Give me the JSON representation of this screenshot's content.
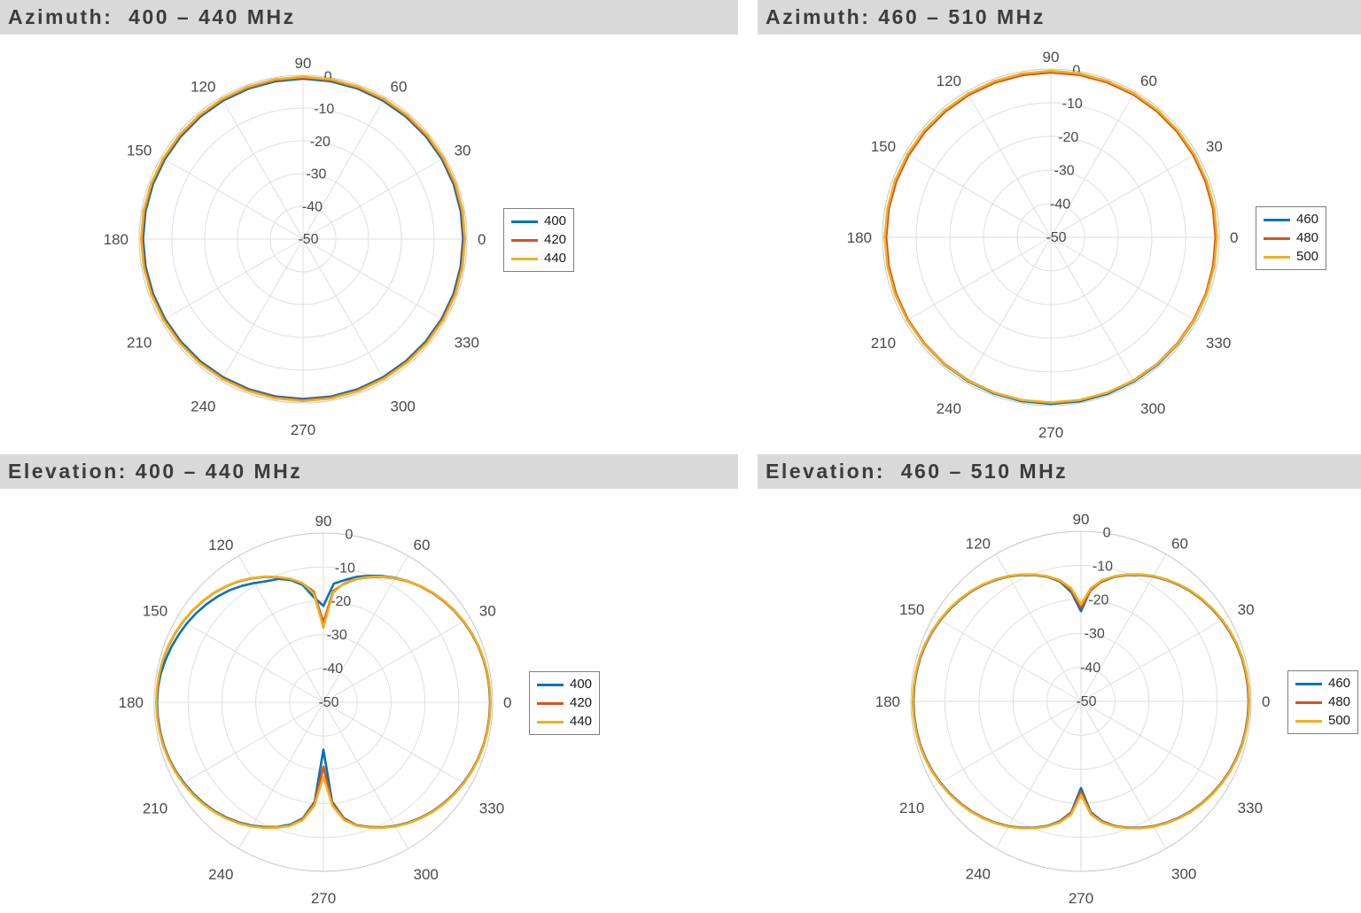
{
  "colors": {
    "title_bg": "#d9d9d9",
    "title_text": "#3c3c3c",
    "grid": "#dedede",
    "outer_ring": "#c6c6c6",
    "tick_text": "#4a4a4a",
    "legend_border": "#7f7f7f",
    "series_blue": "#0072BD",
    "series_orange": "#D95319",
    "series_yellow": "#EDB120"
  },
  "chart_data": [
    {
      "type": "line",
      "subtype": "polar",
      "title": "Azimuth:  400 – 440 MHz",
      "angle_unit": "deg",
      "value_unit": "dB",
      "angle_ticks": [
        0,
        30,
        60,
        90,
        120,
        150,
        180,
        210,
        240,
        270,
        300,
        330
      ],
      "r_ticks": [
        0,
        -10,
        -20,
        -30,
        -40,
        -50
      ],
      "r_range": [
        -50,
        0
      ],
      "grid": true,
      "legend_position": "right-middle",
      "angle_start_deg": 0,
      "angle_step_deg": 10,
      "series": [
        {
          "name": "400",
          "color": "#0072BD",
          "values_db": [
            -1.2,
            -1.15,
            -1.1,
            -1.1,
            -1.15,
            -1.2,
            -1.2,
            -1.15,
            -1.1,
            -1.05,
            -1.1,
            -1.15,
            -1.2,
            -1.25,
            -1.3,
            -1.3,
            -1.25,
            -1.2,
            -1.2,
            -1.25,
            -1.3,
            -1.35,
            -1.35,
            -1.3,
            -1.3,
            -1.3,
            -1.25,
            -1.2,
            -1.2,
            -1.25,
            -1.3,
            -1.3,
            -1.25,
            -1.2,
            -1.15,
            -1.2,
            -1.2
          ]
        },
        {
          "name": "420",
          "color": "#D95319",
          "values_db": [
            -0.85,
            -0.8,
            -0.75,
            -0.75,
            -0.8,
            -0.85,
            -0.85,
            -0.8,
            -0.75,
            -0.7,
            -0.75,
            -0.8,
            -0.85,
            -0.9,
            -0.95,
            -0.95,
            -0.9,
            -0.85,
            -0.85,
            -0.9,
            -0.95,
            -1.0,
            -1.0,
            -0.95,
            -0.95,
            -0.95,
            -0.9,
            -0.85,
            -0.85,
            -0.9,
            -0.95,
            -0.95,
            -0.9,
            -0.85,
            -0.8,
            -0.85,
            -0.85
          ]
        },
        {
          "name": "440",
          "color": "#EDB120",
          "values_db": [
            -0.6,
            -0.55,
            -0.5,
            -0.5,
            -0.55,
            -0.6,
            -0.6,
            -0.55,
            -0.5,
            -0.45,
            -0.5,
            -0.55,
            -0.6,
            -0.65,
            -0.7,
            -0.7,
            -0.65,
            -0.6,
            -0.6,
            -0.65,
            -0.7,
            -0.75,
            -0.75,
            -0.7,
            -0.7,
            -0.7,
            -0.65,
            -0.6,
            -0.6,
            -0.65,
            -0.7,
            -0.7,
            -0.65,
            -0.6,
            -0.55,
            -0.6,
            -0.6
          ]
        }
      ]
    },
    {
      "type": "line",
      "subtype": "polar",
      "title": "Azimuth: 460 – 510 MHz",
      "angle_unit": "deg",
      "value_unit": "dB",
      "angle_ticks": [
        0,
        30,
        60,
        90,
        120,
        150,
        180,
        210,
        240,
        270,
        300,
        330
      ],
      "r_ticks": [
        0,
        -10,
        -20,
        -30,
        -40,
        -50
      ],
      "r_range": [
        -50,
        0
      ],
      "grid": true,
      "legend_position": "right-middle",
      "angle_start_deg": 0,
      "angle_step_deg": 10,
      "series": [
        {
          "name": "460",
          "color": "#0072BD",
          "values_db": [
            -0.9,
            -0.95,
            -1.0,
            -1.0,
            -0.95,
            -0.9,
            -0.85,
            -0.8,
            -0.8,
            -0.8,
            -0.85,
            -0.9,
            -0.95,
            -1.0,
            -1.0,
            -1.0,
            -0.95,
            -0.9,
            -0.9,
            -0.9,
            -0.85,
            -0.8,
            -0.75,
            -0.7,
            -0.65,
            -0.6,
            -0.55,
            -0.5,
            -0.5,
            -0.55,
            -0.6,
            -0.65,
            -0.7,
            -0.75,
            -0.8,
            -0.85,
            -0.9
          ]
        },
        {
          "name": "480",
          "color": "#D95319",
          "values_db": [
            -1.1,
            -1.1,
            -1.15,
            -1.15,
            -1.1,
            -1.05,
            -1.0,
            -1.0,
            -1.0,
            -1.0,
            -1.05,
            -1.1,
            -1.15,
            -1.2,
            -1.2,
            -1.2,
            -1.15,
            -1.1,
            -1.1,
            -1.1,
            -1.05,
            -1.0,
            -0.95,
            -0.9,
            -0.9,
            -0.85,
            -0.85,
            -0.8,
            -0.8,
            -0.85,
            -0.9,
            -0.9,
            -0.95,
            -1.0,
            -1.0,
            -1.05,
            -1.1
          ]
        },
        {
          "name": "500",
          "color": "#EDB120",
          "values_db": [
            -0.7,
            -0.7,
            -0.75,
            -0.75,
            -0.7,
            -0.65,
            -0.6,
            -0.6,
            -0.55,
            -0.55,
            -0.6,
            -0.65,
            -0.7,
            -0.75,
            -0.75,
            -0.75,
            -0.7,
            -0.7,
            -0.65,
            -0.7,
            -0.7,
            -0.75,
            -0.75,
            -0.8,
            -0.8,
            -0.85,
            -0.85,
            -0.9,
            -0.9,
            -0.9,
            -0.85,
            -0.85,
            -0.8,
            -0.8,
            -0.75,
            -0.7,
            -0.7
          ]
        }
      ]
    },
    {
      "type": "line",
      "subtype": "polar",
      "title": "Elevation: 400 – 440 MHz",
      "angle_unit": "deg",
      "value_unit": "dB",
      "angle_ticks": [
        0,
        30,
        60,
        90,
        120,
        150,
        180,
        210,
        240,
        270,
        300,
        330
      ],
      "r_ticks": [
        0,
        -10,
        -20,
        -30,
        -40,
        -50
      ],
      "r_range": [
        -50,
        0
      ],
      "grid": true,
      "legend_position": "right-middle",
      "angle_start_deg": 0,
      "angle_step_deg": 5,
      "series": [
        {
          "name": "400",
          "color": "#0072BD",
          "values_db": [
            -0.75,
            -0.8,
            -0.9,
            -1.05,
            -1.35,
            -1.75,
            -2.25,
            -2.85,
            -3.55,
            -4.35,
            -5.3,
            -6.3,
            -7.5,
            -8.8,
            -10.2,
            -11.6,
            -13.3,
            -14.8,
            -21.5,
            -19.0,
            -14.8,
            -12.6,
            -11.2,
            -10.5,
            -9.3,
            -8.0,
            -6.8,
            -5.8,
            -4.9,
            -4.1,
            -3.4,
            -2.8,
            -2.2,
            -1.7,
            -1.2,
            -0.95,
            -0.85,
            -0.9,
            -1.0,
            -1.15,
            -1.45,
            -1.85,
            -2.4,
            -3.0,
            -3.7,
            -4.5,
            -5.5,
            -6.6,
            -7.9,
            -9.3,
            -10.8,
            -12.6,
            -15.2,
            -20.5,
            -36.0,
            -20.5,
            -15.2,
            -12.4,
            -10.8,
            -9.2,
            -7.8,
            -6.5,
            -5.4,
            -4.4,
            -3.6,
            -2.9,
            -2.3,
            -1.75,
            -1.35,
            -1.05,
            -0.9,
            -0.8,
            -0.75
          ]
        },
        {
          "name": "420",
          "color": "#D95319",
          "values_db": [
            -0.7,
            -0.75,
            -0.85,
            -1.0,
            -1.3,
            -1.7,
            -2.2,
            -2.8,
            -3.5,
            -4.3,
            -5.3,
            -6.4,
            -7.7,
            -9.1,
            -10.7,
            -12.3,
            -14.4,
            -17.0,
            -26.5,
            -17.2,
            -14.3,
            -12.3,
            -10.7,
            -9.1,
            -7.7,
            -6.4,
            -5.3,
            -4.3,
            -3.5,
            -2.8,
            -2.2,
            -1.7,
            -1.3,
            -1.0,
            -0.85,
            -0.75,
            -0.7,
            -0.75,
            -0.85,
            -1.0,
            -1.3,
            -1.7,
            -2.2,
            -2.8,
            -3.5,
            -4.3,
            -5.3,
            -6.4,
            -7.7,
            -9.1,
            -10.7,
            -12.3,
            -15.0,
            -20.0,
            -31.0,
            -20.0,
            -15.0,
            -12.3,
            -10.7,
            -9.1,
            -7.7,
            -6.4,
            -5.3,
            -4.3,
            -3.5,
            -2.8,
            -2.2,
            -1.7,
            -1.3,
            -1.0,
            -0.85,
            -0.75,
            -0.7
          ]
        },
        {
          "name": "440",
          "color": "#EDB120",
          "values_db": [
            -0.6,
            -0.65,
            -0.75,
            -0.9,
            -1.2,
            -1.6,
            -2.1,
            -2.7,
            -3.4,
            -4.2,
            -5.2,
            -6.3,
            -7.6,
            -9.0,
            -10.6,
            -12.2,
            -14.2,
            -17.5,
            -28.0,
            -17.8,
            -14.2,
            -12.2,
            -10.6,
            -9.0,
            -7.6,
            -6.3,
            -5.2,
            -4.2,
            -3.4,
            -2.7,
            -2.1,
            -1.6,
            -1.2,
            -0.9,
            -0.75,
            -0.65,
            -0.6,
            -0.65,
            -0.75,
            -0.9,
            -1.2,
            -1.6,
            -2.1,
            -2.7,
            -3.4,
            -4.2,
            -5.2,
            -6.3,
            -7.6,
            -9.0,
            -10.6,
            -12.2,
            -14.6,
            -19.3,
            -28.0,
            -19.3,
            -14.6,
            -12.2,
            -10.6,
            -9.0,
            -7.6,
            -6.3,
            -5.2,
            -4.2,
            -3.4,
            -2.7,
            -2.1,
            -1.6,
            -1.2,
            -0.9,
            -0.75,
            -0.65,
            -0.6
          ]
        }
      ]
    },
    {
      "type": "line",
      "subtype": "polar",
      "title": "Elevation:  460 – 510 MHz",
      "angle_unit": "deg",
      "value_unit": "dB",
      "angle_ticks": [
        0,
        30,
        60,
        90,
        120,
        150,
        180,
        210,
        240,
        270,
        300,
        330
      ],
      "r_ticks": [
        0,
        -10,
        -20,
        -30,
        -40,
        -50
      ],
      "r_range": [
        -50,
        0
      ],
      "grid": true,
      "legend_position": "right-middle",
      "angle_start_deg": 0,
      "angle_step_deg": 5,
      "series": [
        {
          "name": "460",
          "color": "#0072BD",
          "values_db": [
            -0.75,
            -0.8,
            -0.9,
            -1.05,
            -1.35,
            -1.75,
            -2.25,
            -2.85,
            -3.55,
            -4.35,
            -5.3,
            -6.4,
            -7.6,
            -9.0,
            -10.5,
            -12.1,
            -14.2,
            -16.8,
            -23.5,
            -17.8,
            -14.2,
            -12.1,
            -10.5,
            -9.0,
            -7.6,
            -6.4,
            -5.3,
            -4.35,
            -3.55,
            -2.85,
            -2.25,
            -1.75,
            -1.35,
            -1.05,
            -0.9,
            -0.8,
            -0.75,
            -0.8,
            -0.9,
            -1.05,
            -1.35,
            -1.75,
            -2.25,
            -2.85,
            -3.55,
            -4.35,
            -5.3,
            -6.4,
            -7.6,
            -9.0,
            -10.5,
            -12.1,
            -14.2,
            -17.3,
            -24.5,
            -17.3,
            -14.2,
            -12.1,
            -10.5,
            -9.0,
            -7.6,
            -6.4,
            -5.3,
            -4.35,
            -3.55,
            -2.85,
            -2.25,
            -1.75,
            -1.35,
            -1.05,
            -0.9,
            -0.8,
            -0.75
          ]
        },
        {
          "name": "480",
          "color": "#D95319",
          "values_db": [
            -0.65,
            -0.7,
            -0.8,
            -0.95,
            -1.25,
            -1.65,
            -2.15,
            -2.75,
            -3.45,
            -4.25,
            -5.2,
            -6.3,
            -7.5,
            -8.9,
            -10.4,
            -12.0,
            -14.0,
            -17.2,
            -22.5,
            -17.2,
            -14.0,
            -12.0,
            -10.4,
            -8.9,
            -7.5,
            -6.3,
            -5.2,
            -4.25,
            -3.45,
            -2.75,
            -2.15,
            -1.65,
            -1.25,
            -0.95,
            -0.8,
            -0.7,
            -0.65,
            -0.7,
            -0.8,
            -0.95,
            -1.25,
            -1.65,
            -2.15,
            -2.75,
            -3.45,
            -4.25,
            -5.2,
            -6.3,
            -7.5,
            -8.9,
            -10.4,
            -12.0,
            -14.0,
            -17.0,
            -23.5,
            -17.0,
            -14.0,
            -12.0,
            -10.4,
            -8.9,
            -7.5,
            -6.3,
            -5.2,
            -4.25,
            -3.45,
            -2.75,
            -2.15,
            -1.65,
            -1.25,
            -0.95,
            -0.8,
            -0.7,
            -0.65
          ]
        },
        {
          "name": "500",
          "color": "#EDB120",
          "values_db": [
            -0.55,
            -0.6,
            -0.7,
            -0.85,
            -1.15,
            -1.55,
            -2.05,
            -2.65,
            -3.35,
            -4.15,
            -5.1,
            -6.2,
            -7.4,
            -8.8,
            -10.3,
            -11.9,
            -13.8,
            -16.6,
            -21.5,
            -16.6,
            -13.8,
            -11.9,
            -10.3,
            -8.8,
            -7.4,
            -6.2,
            -5.1,
            -4.15,
            -3.35,
            -2.65,
            -2.05,
            -1.55,
            -1.15,
            -0.85,
            -0.7,
            -0.6,
            -0.55,
            -0.6,
            -0.7,
            -0.85,
            -1.15,
            -1.55,
            -2.05,
            -2.65,
            -3.35,
            -4.15,
            -5.1,
            -6.2,
            -7.4,
            -8.8,
            -10.3,
            -11.9,
            -13.8,
            -16.6,
            -22.5,
            -16.6,
            -13.8,
            -11.9,
            -10.3,
            -8.8,
            -7.4,
            -6.2,
            -5.1,
            -4.15,
            -3.35,
            -2.65,
            -2.05,
            -1.55,
            -1.15,
            -0.85,
            -0.7,
            -0.6,
            -0.55
          ]
        }
      ]
    }
  ]
}
